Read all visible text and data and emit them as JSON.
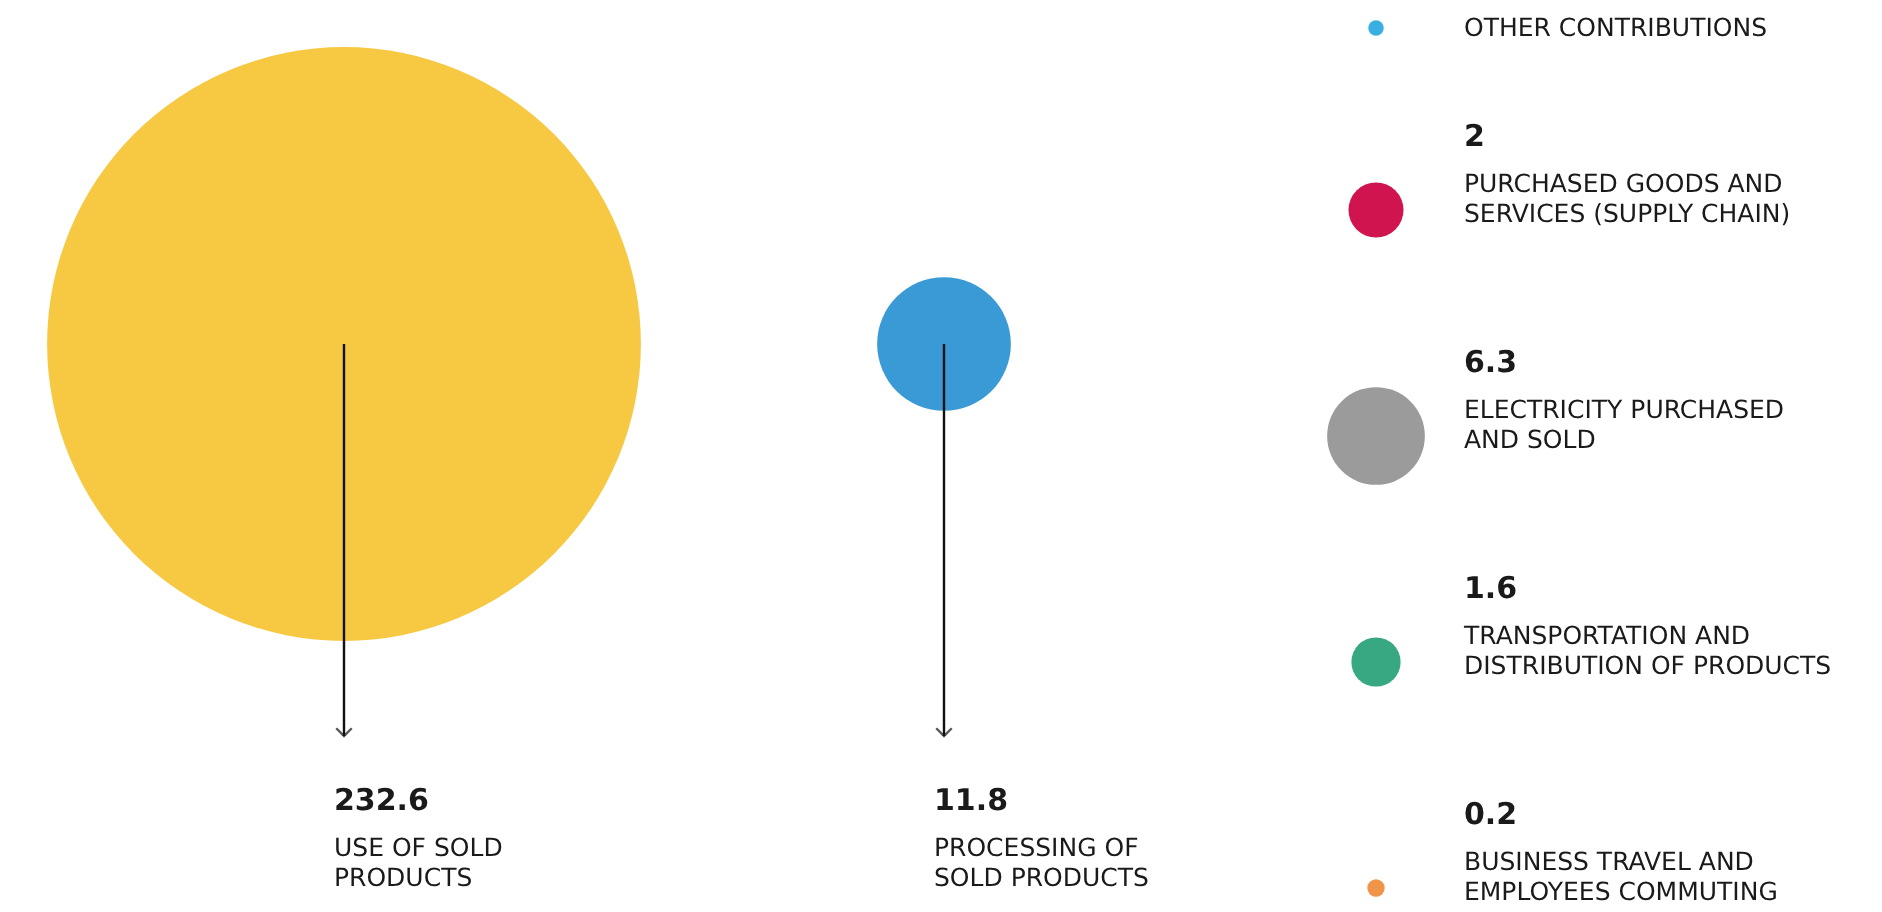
{
  "chart_data": {
    "type": "other",
    "legend_title": "OTHER CONTRIBUTIONS",
    "data_labels": true,
    "categories": [
      "USE OF SOLD\nPRODUCTS",
      "PROCESSING OF\nSOLD PRODUCTS",
      "PURCHASED GOODS AND\nSERVICES (SUPPLY CHAIN)",
      "ELECTRICITY PURCHASED\nAND SOLD",
      "TRANSPORTATION AND\nDISTRIBUTION OF PRODUCTS",
      "BUSINESS TRAVEL AND\nEMPLOYEES COMMUTING"
    ],
    "values": [
      232.6,
      11.8,
      2,
      6.3,
      1.6,
      0.2
    ],
    "colors": [
      "#f7c842",
      "#3a9ad6",
      "#cf1450",
      "#9b9b9b",
      "#38a882",
      "#f0944a"
    ]
  }
}
